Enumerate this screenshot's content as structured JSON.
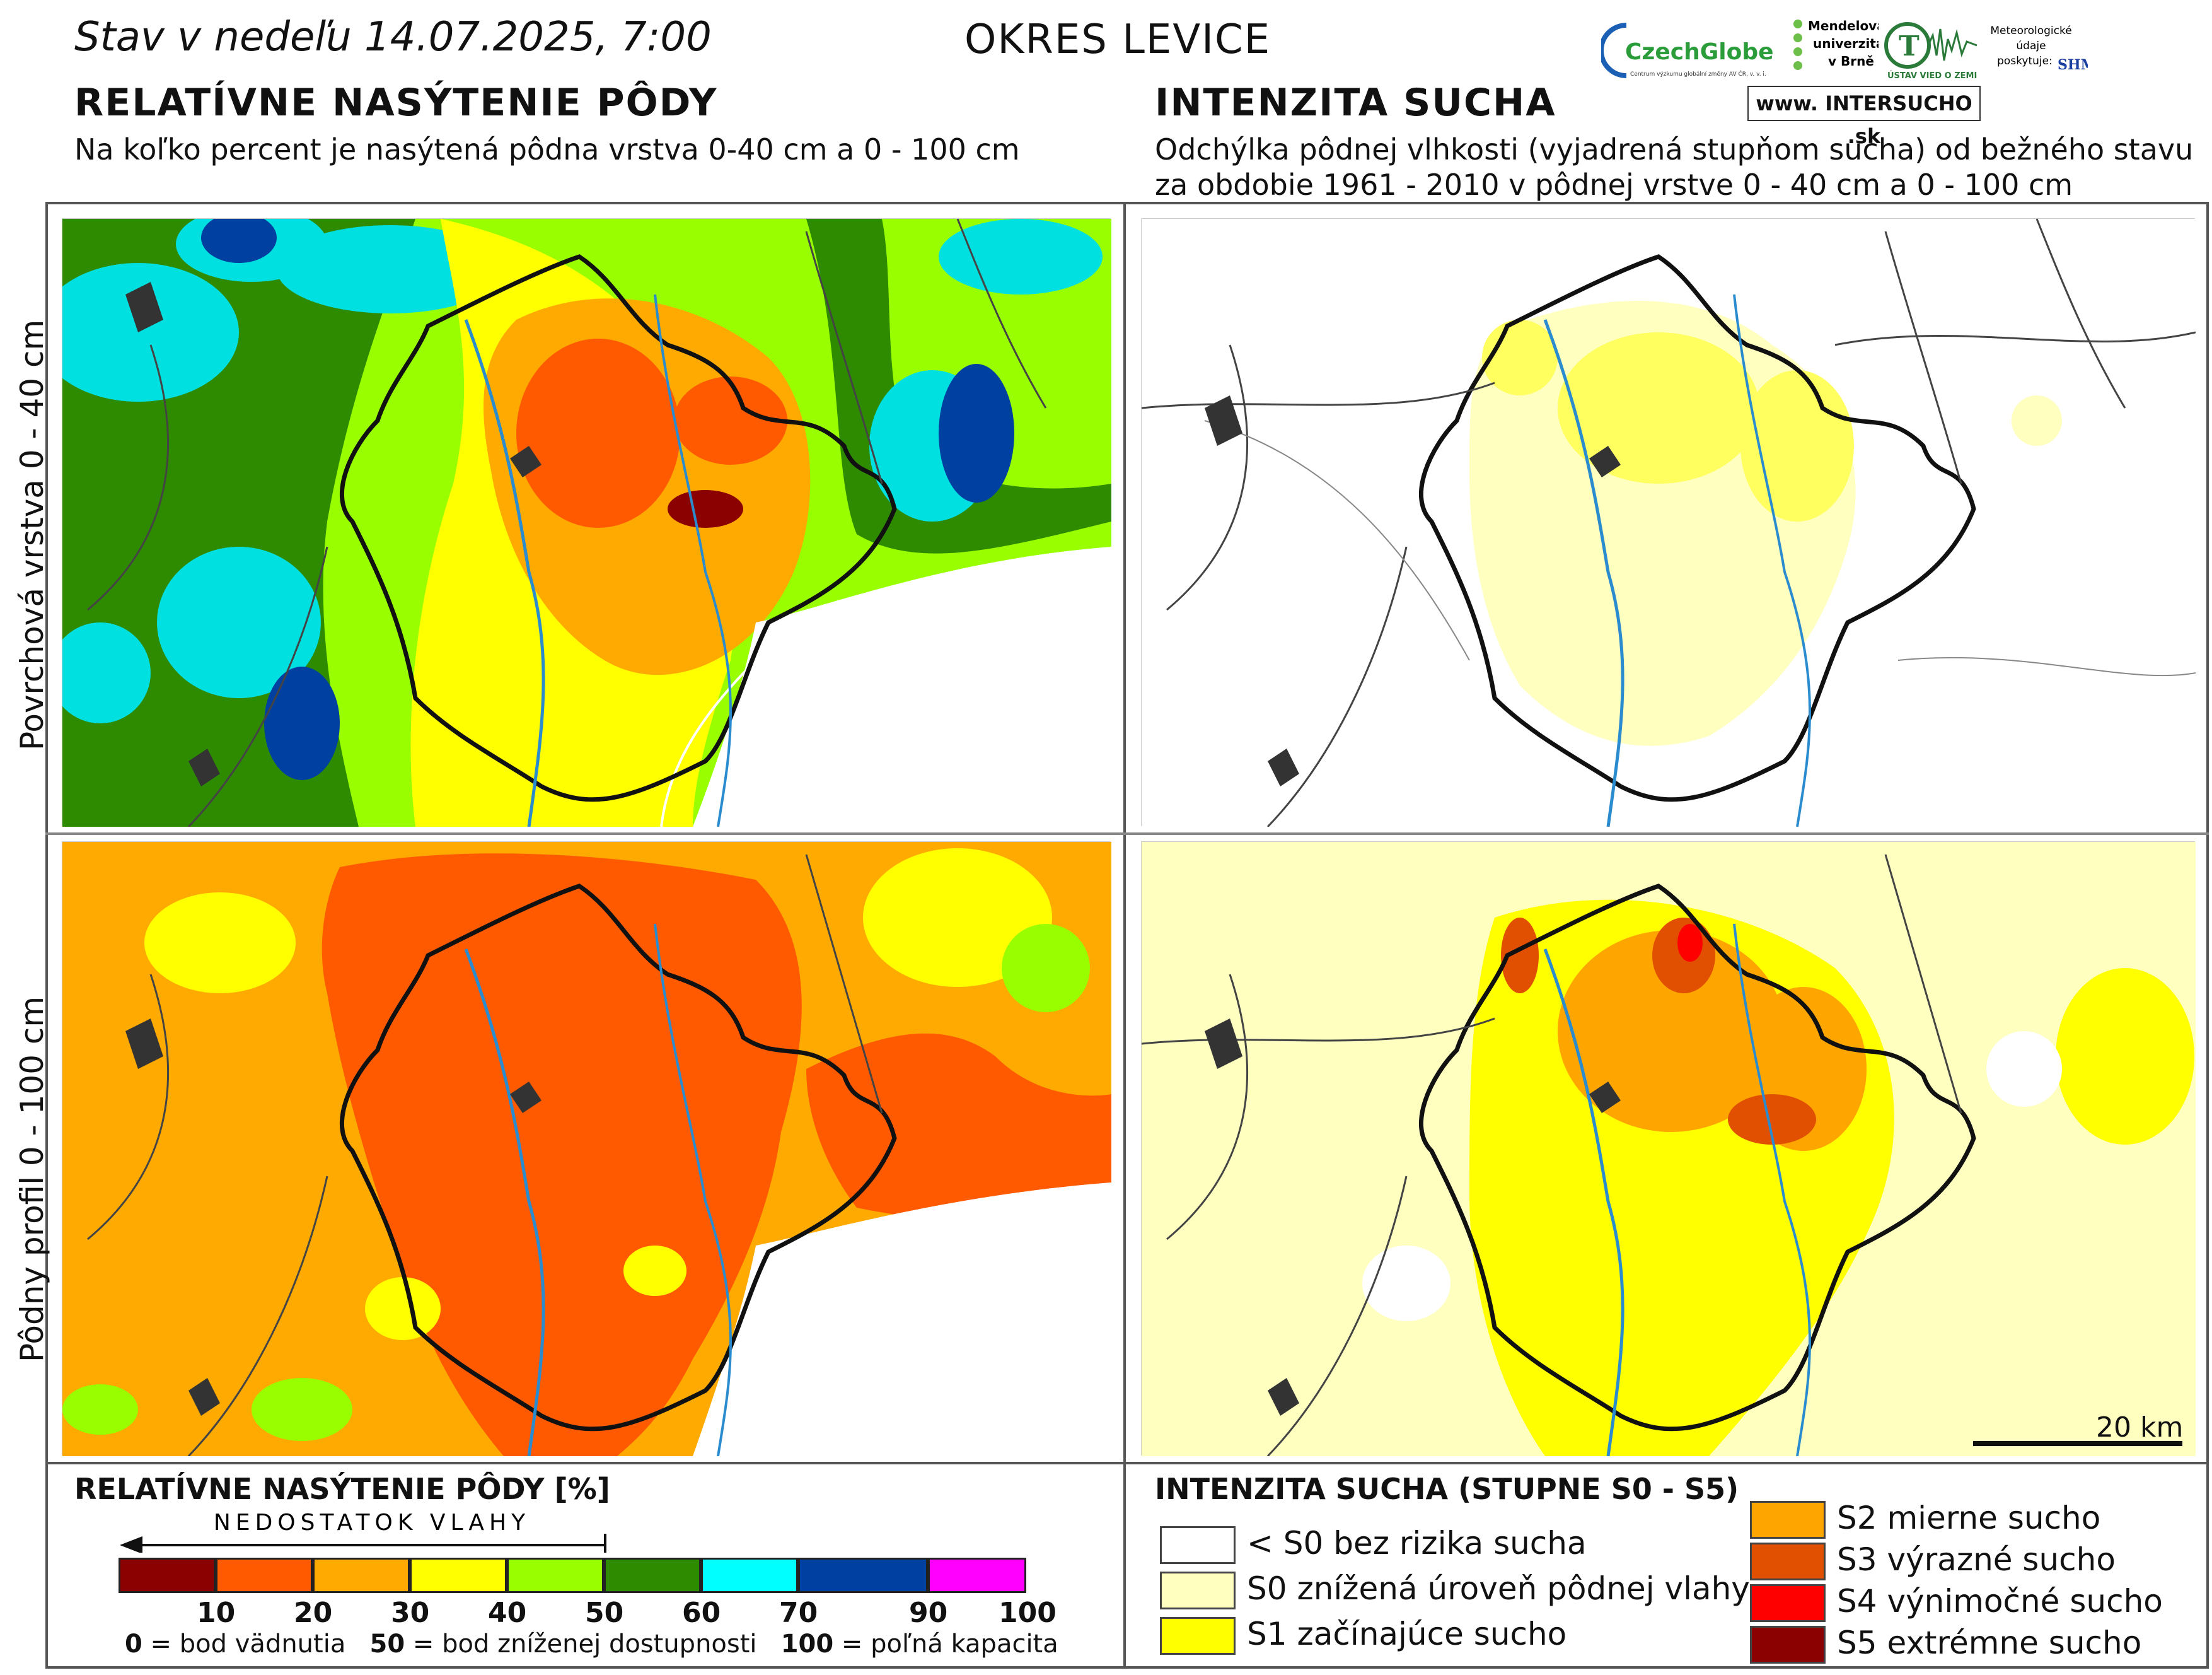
{
  "header": {
    "date_prefix": "Stav v nedeľu",
    "date_value": "14.07.2025, 7:00",
    "district": "OKRES  LEVICE",
    "website": "www. INTERSUCHO .sk",
    "logos": {
      "czechglobe": "CzechGlobe",
      "czechglobe_sub": "Centrum výzkumu globální změny AV ČR, v. v. i.",
      "mendel": [
        "Mendelova",
        "univerzita",
        "v Brně"
      ],
      "uvz": "ÚSTAV VIED O ZEMI",
      "meteo": [
        "Meteorologické",
        "údaje",
        "poskytuje:"
      ],
      "shmu": "SHMU"
    }
  },
  "left_panel": {
    "title": "RELATÍVNE NASÝTENIE PÔDY",
    "subtitle": "Na koľko percent je nasýtená pôdna vrstva 0-40 cm a 0 - 100 cm"
  },
  "right_panel": {
    "title": "INTENZITA SUCHA",
    "subtitle_1": "Odchýlka pôdnej vlhkosti (vyjadrená stupňom sucha) od bežného stavu",
    "subtitle_2": "za obdobie 1961 - 2010 v pôdnej vrstve 0 - 40 cm a 0 - 100 cm"
  },
  "row_labels": {
    "top": "Povrchová vrstva 0 - 40 cm",
    "bottom": "Pôdny profil 0 - 100 cm"
  },
  "scale": {
    "label": "20 km"
  },
  "saturation_legend": {
    "title": "RELATÍVNE NASÝTENIE PÔDY [%]",
    "arrow_label": "NEDOSTATOK VLAHY",
    "colors": [
      "#8b0000",
      "#ff5a00",
      "#ffaa00",
      "#ffff00",
      "#99ff00",
      "#2e8b00",
      "#00ffff",
      "#0040a0",
      "#ff00ff"
    ],
    "ticks": [
      "10",
      "20",
      "30",
      "40",
      "50",
      "60",
      "70",
      "90",
      "100"
    ],
    "note": {
      "a_num": "0",
      "a_text": " = bod vädnutia",
      "b_num": "50",
      "b_text": " = bod zníženej dostupnosti",
      "c_num": "100",
      "c_text": " = poľná kapacita"
    }
  },
  "drought_legend": {
    "title": "INTENZITA SUCHA (STUPNE S0 - S5)",
    "items": [
      {
        "color": "#ffffff",
        "label": "< S0 bez rizika sucha"
      },
      {
        "color": "#ffffc0",
        "label": "S0 znížená úroveň pôdnej vlahy"
      },
      {
        "color": "#ffff00",
        "label": "S1 začínajúce sucho"
      },
      {
        "color": "#ffa500",
        "label": "S2 mierne sucho"
      },
      {
        "color": "#e05000",
        "label": "S3 výrazné sucho"
      },
      {
        "color": "#ff0000",
        "label": "S4 výnimočné sucho"
      },
      {
        "color": "#8b0000",
        "label": "S5 extrémne sucho"
      }
    ]
  }
}
